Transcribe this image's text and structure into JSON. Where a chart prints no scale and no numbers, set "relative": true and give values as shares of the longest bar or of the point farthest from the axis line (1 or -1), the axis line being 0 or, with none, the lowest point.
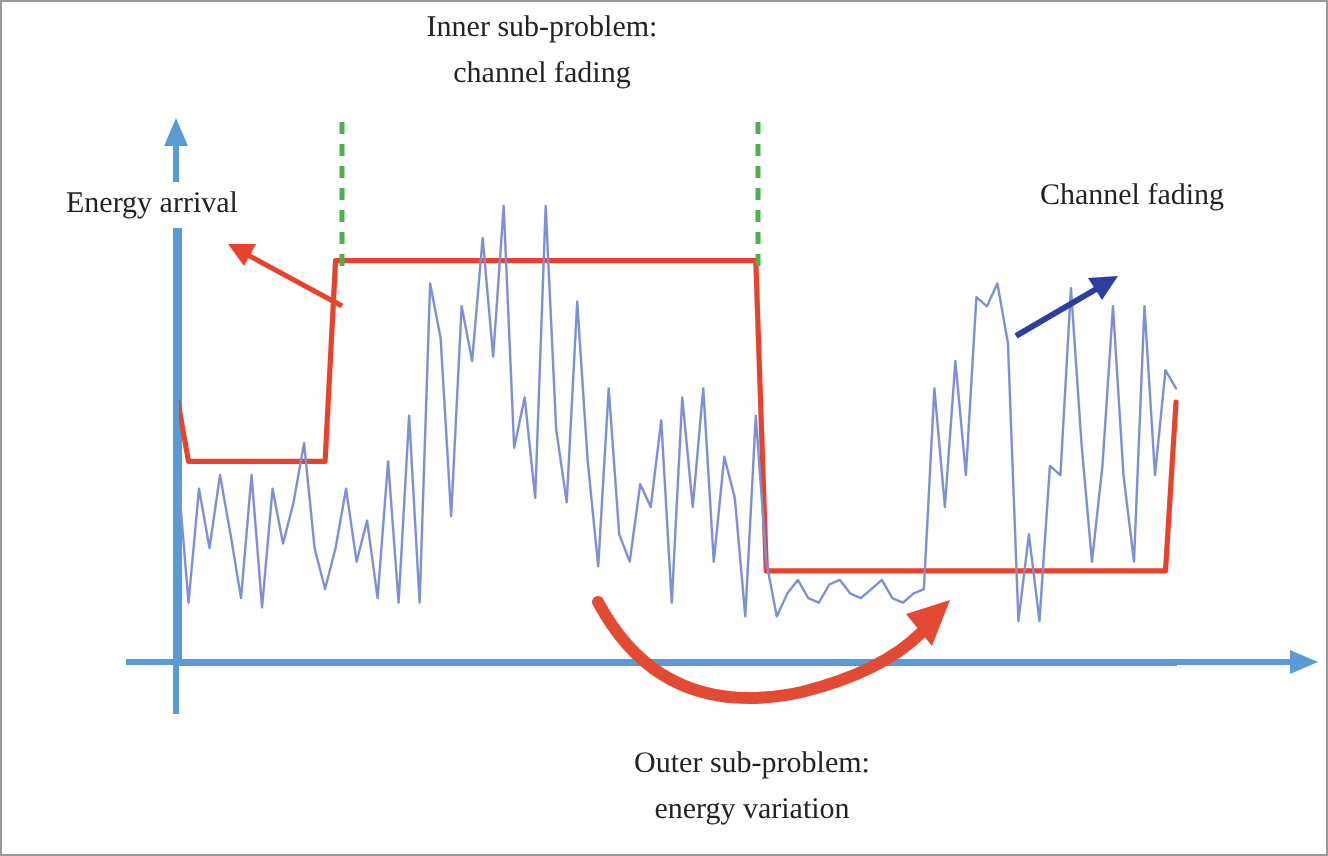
{
  "chart_data": {
    "type": "line",
    "relative": true,
    "tick_labels": false,
    "categories": [
      null,
      null,
      null,
      null,
      null,
      null,
      null,
      null,
      null,
      null,
      null,
      null,
      null,
      null,
      null,
      null,
      null,
      null,
      null,
      null,
      null,
      null,
      null,
      null,
      null,
      null,
      null,
      null,
      null,
      null,
      null,
      null,
      null,
      null,
      null,
      null,
      null,
      null,
      null,
      null,
      null,
      null,
      null,
      null,
      null,
      null,
      null,
      null,
      null,
      null,
      null,
      null,
      null,
      null,
      null,
      null,
      null,
      null,
      null,
      null,
      null,
      null,
      null,
      null,
      null,
      null,
      null,
      null,
      null,
      null,
      null,
      null,
      null,
      null,
      null,
      null,
      null,
      null,
      null,
      null,
      null,
      null,
      null,
      null,
      null,
      null,
      null,
      null,
      null,
      null,
      null,
      null,
      null,
      null,
      null,
      null
    ],
    "series": [
      {
        "color": "#7f8fd6",
        "values": [
          0.41,
          0.13,
          0.38,
          0.25,
          0.41,
          0.28,
          0.14,
          0.41,
          0.12,
          0.38,
          0.26,
          0.35,
          0.48,
          0.25,
          0.16,
          0.25,
          0.38,
          0.22,
          0.31,
          0.14,
          0.44,
          0.13,
          0.54,
          0.13,
          0.83,
          0.71,
          0.32,
          0.78,
          0.66,
          0.93,
          0.67,
          1,
          0.47,
          0.58,
          0.36,
          1,
          0.51,
          0.35,
          0.79,
          0.44,
          0.21,
          0.6,
          0.28,
          0.22,
          0.39,
          0.34,
          0.53,
          0.13,
          0.58,
          0.34,
          0.6,
          0.22,
          0.45,
          0.36,
          0.1,
          0.54,
          0.22,
          0.1,
          0.15,
          0.18,
          0.14,
          0.13,
          0.17,
          0.18,
          0.15,
          0.14,
          0.16,
          0.18,
          0.14,
          0.13,
          0.15,
          0.16,
          0.6,
          0.34,
          0.66,
          0.41,
          0.8,
          0.78,
          0.83,
          0.7,
          0.09,
          0.28,
          0.09,
          0.43,
          0.41,
          0.82,
          0.48,
          0.22,
          0.43,
          0.78,
          0.41,
          0.22,
          0.78,
          0.41,
          0.64,
          0.6
        ]
      },
      {
        "color": "#e8412c",
        "values": [
          0.57,
          0.44,
          0.44,
          0.44,
          0.44,
          0.44,
          0.44,
          0.44,
          0.44,
          0.44,
          0.44,
          0.44,
          0.44,
          0.44,
          0.44,
          0.88,
          0.88,
          0.88,
          0.88,
          0.88,
          0.88,
          0.88,
          0.88,
          0.88,
          0.88,
          0.88,
          0.88,
          0.88,
          0.88,
          0.88,
          0.88,
          0.88,
          0.88,
          0.88,
          0.88,
          0.88,
          0.88,
          0.88,
          0.88,
          0.88,
          0.88,
          0.88,
          0.88,
          0.88,
          0.88,
          0.88,
          0.88,
          0.88,
          0.88,
          0.88,
          0.88,
          0.88,
          0.88,
          0.88,
          0.88,
          0.88,
          0.2,
          0.2,
          0.2,
          0.2,
          0.2,
          0.2,
          0.2,
          0.2,
          0.2,
          0.2,
          0.2,
          0.2,
          0.2,
          0.2,
          0.2,
          0.2,
          0.2,
          0.2,
          0.2,
          0.2,
          0.2,
          0.2,
          0.2,
          0.2,
          0.2,
          0.2,
          0.2,
          0.2,
          0.2,
          0.2,
          0.2,
          0.2,
          0.2,
          0.2,
          0.2,
          0.2,
          0.2,
          0.2,
          0.2,
          0.57
        ]
      }
    ],
    "annotations": [
      "Energy arrival",
      "Inner sub-problem:\nchannel fading",
      "Channel fading",
      "Outer sub-problem:\nenergy variation"
    ]
  }
}
